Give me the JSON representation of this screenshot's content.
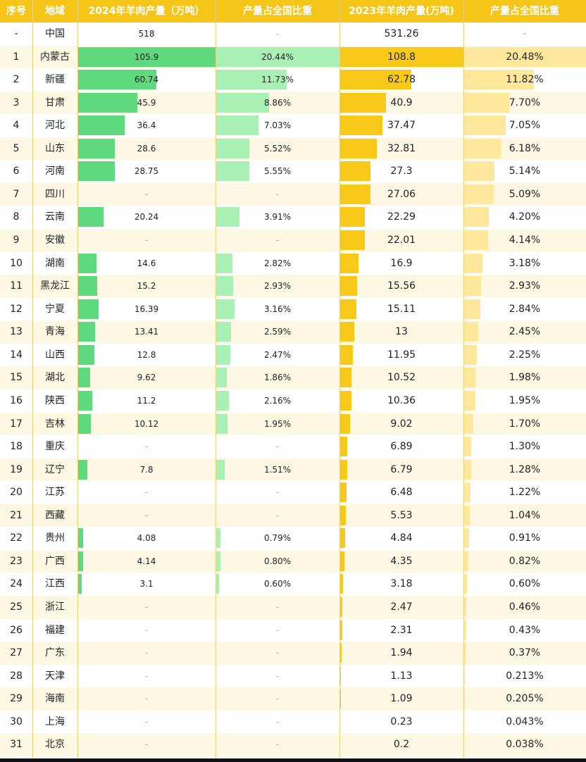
{
  "headers": {
    "idx": "序号",
    "region": "地域",
    "p2024": "2024年羊肉产量（万吨）",
    "s2024": "产量占全国比重",
    "p2023": "2023年羊肉产量(万吨)",
    "s2023": "产量占全国比重"
  },
  "colors": {
    "header": "#f5c518",
    "bar2024": "#5ed97d",
    "share2024": "#a8f0b3",
    "bar2023": "#f9c91a",
    "share2023": "#ffe89c"
  },
  "chart_data": {
    "type": "table",
    "title": "羊肉产量",
    "columns": [
      "序号",
      "地域",
      "2024年羊肉产量（万吨）",
      "产量占全国比重",
      "2023年羊肉产量(万吨)",
      "产量占全国比重"
    ],
    "rows": [
      {
        "idx": "-",
        "region": "中国",
        "p2024": "518",
        "s2024": "-",
        "p2023": "531.26",
        "s2023": "-"
      },
      {
        "idx": "1",
        "region": "内蒙古",
        "p2024": "105.9",
        "s2024": "20.44%",
        "p2023": "108.8",
        "s2023": "20.48%"
      },
      {
        "idx": "2",
        "region": "新疆",
        "p2024": "60.74",
        "s2024": "11.73%",
        "p2023": "62.78",
        "s2023": "11.82%"
      },
      {
        "idx": "3",
        "region": "甘肃",
        "p2024": "45.9",
        "s2024": "8.86%",
        "p2023": "40.9",
        "s2023": "7.70%"
      },
      {
        "idx": "4",
        "region": "河北",
        "p2024": "36.4",
        "s2024": "7.03%",
        "p2023": "37.47",
        "s2023": "7.05%"
      },
      {
        "idx": "5",
        "region": "山东",
        "p2024": "28.6",
        "s2024": "5.52%",
        "p2023": "32.81",
        "s2023": "6.18%"
      },
      {
        "idx": "6",
        "region": "河南",
        "p2024": "28.75",
        "s2024": "5.55%",
        "p2023": "27.3",
        "s2023": "5.14%"
      },
      {
        "idx": "7",
        "region": "四川",
        "p2024": "-",
        "s2024": "-",
        "p2023": "27.06",
        "s2023": "5.09%"
      },
      {
        "idx": "8",
        "region": "云南",
        "p2024": "20.24",
        "s2024": "3.91%",
        "p2023": "22.29",
        "s2023": "4.20%"
      },
      {
        "idx": "9",
        "region": "安徽",
        "p2024": "-",
        "s2024": "-",
        "p2023": "22.01",
        "s2023": "4.14%"
      },
      {
        "idx": "10",
        "region": "湖南",
        "p2024": "14.6",
        "s2024": "2.82%",
        "p2023": "16.9",
        "s2023": "3.18%"
      },
      {
        "idx": "11",
        "region": "黑龙江",
        "p2024": "15.2",
        "s2024": "2.93%",
        "p2023": "15.56",
        "s2023": "2.93%"
      },
      {
        "idx": "12",
        "region": "宁夏",
        "p2024": "16.39",
        "s2024": "3.16%",
        "p2023": "15.11",
        "s2023": "2.84%"
      },
      {
        "idx": "13",
        "region": "青海",
        "p2024": "13.41",
        "s2024": "2.59%",
        "p2023": "13",
        "s2023": "2.45%"
      },
      {
        "idx": "14",
        "region": "山西",
        "p2024": "12.8",
        "s2024": "2.47%",
        "p2023": "11.95",
        "s2023": "2.25%"
      },
      {
        "idx": "15",
        "region": "湖北",
        "p2024": "9.62",
        "s2024": "1.86%",
        "p2023": "10.52",
        "s2023": "1.98%"
      },
      {
        "idx": "16",
        "region": "陕西",
        "p2024": "11.2",
        "s2024": "2.16%",
        "p2023": "10.36",
        "s2023": "1.95%"
      },
      {
        "idx": "17",
        "region": "吉林",
        "p2024": "10.12",
        "s2024": "1.95%",
        "p2023": "9.02",
        "s2023": "1.70%"
      },
      {
        "idx": "18",
        "region": "重庆",
        "p2024": "-",
        "s2024": "-",
        "p2023": "6.89",
        "s2023": "1.30%"
      },
      {
        "idx": "19",
        "region": "辽宁",
        "p2024": "7.8",
        "s2024": "1.51%",
        "p2023": "6.79",
        "s2023": "1.28%"
      },
      {
        "idx": "20",
        "region": "江苏",
        "p2024": "-",
        "s2024": "-",
        "p2023": "6.48",
        "s2023": "1.22%"
      },
      {
        "idx": "21",
        "region": "西藏",
        "p2024": "-",
        "s2024": "-",
        "p2023": "5.53",
        "s2023": "1.04%"
      },
      {
        "idx": "22",
        "region": "贵州",
        "p2024": "4.08",
        "s2024": "0.79%",
        "p2023": "4.84",
        "s2023": "0.91%"
      },
      {
        "idx": "23",
        "region": "广西",
        "p2024": "4.14",
        "s2024": "0.80%",
        "p2023": "4.35",
        "s2023": "0.82%"
      },
      {
        "idx": "24",
        "region": "江西",
        "p2024": "3.1",
        "s2024": "0.60%",
        "p2023": "3.18",
        "s2023": "0.60%"
      },
      {
        "idx": "25",
        "region": "浙江",
        "p2024": "-",
        "s2024": "-",
        "p2023": "2.47",
        "s2023": "0.46%"
      },
      {
        "idx": "26",
        "region": "福建",
        "p2024": "-",
        "s2024": "-",
        "p2023": "2.31",
        "s2023": "0.43%"
      },
      {
        "idx": "27",
        "region": "广东",
        "p2024": "-",
        "s2024": "-",
        "p2023": "1.94",
        "s2023": "0.37%"
      },
      {
        "idx": "28",
        "region": "天津",
        "p2024": "-",
        "s2024": "-",
        "p2023": "1.13",
        "s2023": "0.213%"
      },
      {
        "idx": "29",
        "region": "海南",
        "p2024": "-",
        "s2024": "-",
        "p2023": "1.09",
        "s2023": "0.205%"
      },
      {
        "idx": "30",
        "region": "上海",
        "p2024": "-",
        "s2024": "-",
        "p2023": "0.23",
        "s2023": "0.043%"
      },
      {
        "idx": "31",
        "region": "北京",
        "p2024": "-",
        "s2024": "-",
        "p2023": "0.2",
        "s2023": "0.038%"
      }
    ]
  }
}
